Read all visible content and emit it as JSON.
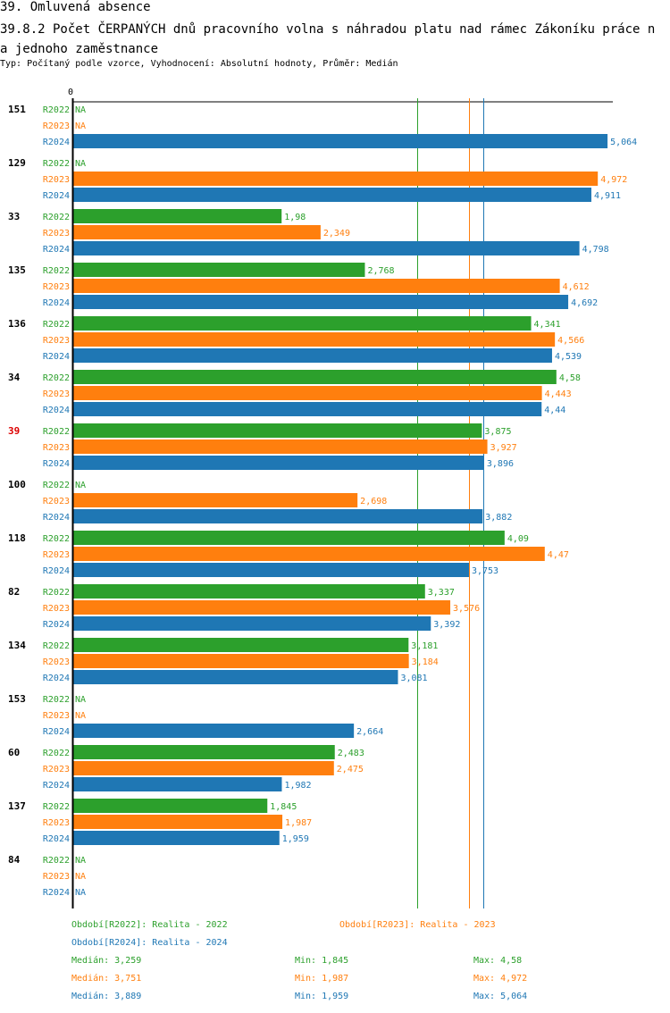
{
  "header": {
    "title": "39. Omluvená absence",
    "subtitle": "39.8.2 Počet ČERPANÝCH dnů pracovního volna s náhradou platu nad rámec Zákoníku práce na jednoho zaměstnance",
    "meta": "Typ: Počítaný podle vzorce, Vyhodnocení: Absolutní hodnoty, Průměr: Medián"
  },
  "colors": {
    "R2022": "#2ca02c",
    "R2023": "#ff7f0e",
    "R2024": "#1f77b4",
    "highlight": "#dd0000"
  },
  "chart_data": {
    "type": "bar",
    "orientation": "horizontal",
    "title": "39.8.2 Počet ČERPANÝCH dnů pracovního volna s náhradou platu nad rámec Zákoníku práce na jednoho zaměstnance",
    "xlabel": "",
    "ylabel": "",
    "x_tick_labels": [
      "0"
    ],
    "xlim": [
      0,
      5.12
    ],
    "na_label": "NA",
    "series_names": [
      "R2022",
      "R2023",
      "R2024"
    ],
    "categories": [
      "151",
      "129",
      "33",
      "135",
      "136",
      "34",
      "39",
      "100",
      "118",
      "82",
      "134",
      "153",
      "60",
      "137",
      "84"
    ],
    "highlight_category": "39",
    "series": [
      {
        "name": "R2022",
        "values": [
          null,
          null,
          1.98,
          2.768,
          4.341,
          4.58,
          3.875,
          null,
          4.09,
          3.337,
          3.181,
          null,
          2.483,
          1.845,
          null
        ],
        "labels": [
          "NA",
          "NA",
          "1,98",
          "2,768",
          "4,341",
          "4,58",
          "3,875",
          "NA",
          "4,09",
          "3,337",
          "3,181",
          "NA",
          "2,483",
          "1,845",
          "NA"
        ]
      },
      {
        "name": "R2023",
        "values": [
          null,
          4.972,
          2.349,
          4.612,
          4.566,
          4.443,
          3.927,
          2.698,
          4.47,
          3.576,
          3.184,
          null,
          2.475,
          1.987,
          null
        ],
        "labels": [
          "NA",
          "4,972",
          "2,349",
          "4,612",
          "4,566",
          "4,443",
          "3,927",
          "2,698",
          "4,47",
          "3,576",
          "3,184",
          "NA",
          "2,475",
          "1,987",
          "NA"
        ]
      },
      {
        "name": "R2024",
        "values": [
          5.064,
          4.911,
          4.798,
          4.692,
          4.539,
          4.44,
          3.896,
          3.882,
          3.753,
          3.392,
          3.081,
          2.664,
          1.982,
          1.959,
          null
        ],
        "labels": [
          "5,064",
          "4,911",
          "4,798",
          "4,692",
          "4,539",
          "4,44",
          "3,896",
          "3,882",
          "3,753",
          "3,392",
          "3,081",
          "2,664",
          "1,982",
          "1,959",
          "NA"
        ]
      }
    ],
    "reference_lines": [
      {
        "series": "R2022",
        "type": "median",
        "value": 3.259
      },
      {
        "series": "R2023",
        "type": "median",
        "value": 3.751
      },
      {
        "series": "R2024",
        "type": "median",
        "value": 3.889
      }
    ],
    "legend": [
      {
        "series": "R2022",
        "text": "Období[R2022]: Realita - 2022"
      },
      {
        "series": "R2023",
        "text": "Období[R2023]: Realita - 2023"
      },
      {
        "series": "R2024",
        "text": "Období[R2024]: Realita - 2024"
      }
    ],
    "stats": [
      {
        "series": "R2022",
        "median": "Medián: 3,259",
        "min": "Min: 1,845",
        "max": "Max: 4,58"
      },
      {
        "series": "R2023",
        "median": "Medián: 3,751",
        "min": "Min: 1,987",
        "max": "Max: 4,972"
      },
      {
        "series": "R2024",
        "median": "Medián: 3,889",
        "min": "Min: 1,959",
        "max": "Max: 5,064"
      }
    ]
  }
}
